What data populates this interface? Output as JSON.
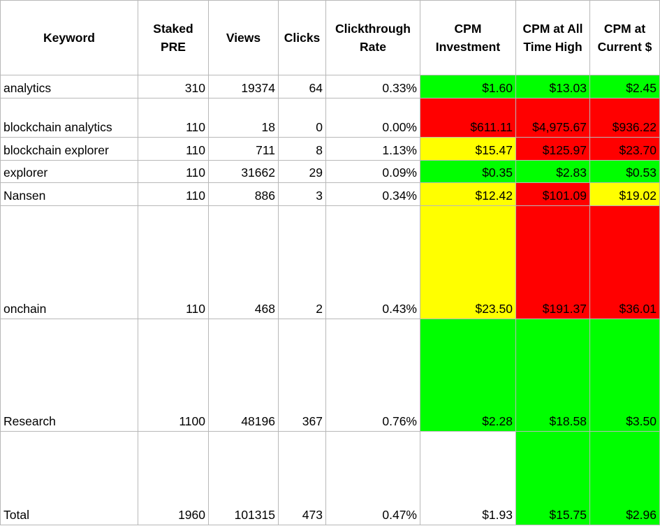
{
  "table": {
    "headers": [
      "Keyword",
      "Staked PRE",
      "Views",
      "Clicks",
      "Clickthrough Rate",
      "CPM Investment",
      "CPM at All Time High",
      "CPM at Current $"
    ],
    "rows": [
      {
        "keyword": "analytics",
        "staked": "310",
        "views": "19374",
        "clicks": "64",
        "ctr": "0.33%",
        "cpm_inv": "$1.60",
        "cpm_ath": "$13.03",
        "cpm_cur": "$2.45",
        "colors": [
          "green",
          "green",
          "green"
        ]
      },
      {
        "keyword": "blockchain analytics",
        "staked": "110",
        "views": "18",
        "clicks": "0",
        "ctr": "0.00%",
        "cpm_inv": "$611.11",
        "cpm_ath": "$4,975.67",
        "cpm_cur": "$936.22",
        "colors": [
          "red",
          "red",
          "red"
        ]
      },
      {
        "keyword": "blockchain explorer",
        "staked": "110",
        "views": "711",
        "clicks": "8",
        "ctr": "1.13%",
        "cpm_inv": "$15.47",
        "cpm_ath": "$125.97",
        "cpm_cur": "$23.70",
        "colors": [
          "yellow",
          "red",
          "red"
        ]
      },
      {
        "keyword": "explorer",
        "staked": "110",
        "views": "31662",
        "clicks": "29",
        "ctr": "0.09%",
        "cpm_inv": "$0.35",
        "cpm_ath": "$2.83",
        "cpm_cur": "$0.53",
        "colors": [
          "green",
          "green",
          "green"
        ]
      },
      {
        "keyword": "Nansen",
        "staked": "110",
        "views": "886",
        "clicks": "3",
        "ctr": "0.34%",
        "cpm_inv": "$12.42",
        "cpm_ath": "$101.09",
        "cpm_cur": "$19.02",
        "colors": [
          "yellow",
          "red",
          "yellow"
        ]
      },
      {
        "keyword": "onchain",
        "staked": "110",
        "views": "468",
        "clicks": "2",
        "ctr": "0.43%",
        "cpm_inv": "$23.50",
        "cpm_ath": "$191.37",
        "cpm_cur": "$36.01",
        "colors": [
          "yellow",
          "red",
          "red"
        ]
      },
      {
        "keyword": "Research",
        "staked": "1100",
        "views": "48196",
        "clicks": "367",
        "ctr": "0.76%",
        "cpm_inv": "$2.28",
        "cpm_ath": "$18.58",
        "cpm_cur": "$3.50",
        "colors": [
          "green",
          "green",
          "green"
        ]
      },
      {
        "keyword": "Total",
        "staked": "1960",
        "views": "101315",
        "clicks": "473",
        "ctr": "0.47%",
        "cpm_inv": "$1.93",
        "cpm_ath": "$15.75",
        "cpm_cur": "$2.96",
        "colors": [
          "white",
          "green",
          "green"
        ]
      }
    ]
  },
  "colors": {
    "green": "#00ff00",
    "yellow": "#ffff00",
    "red": "#ff0000",
    "white": "#ffffff",
    "grid": "#b8b8b8"
  }
}
